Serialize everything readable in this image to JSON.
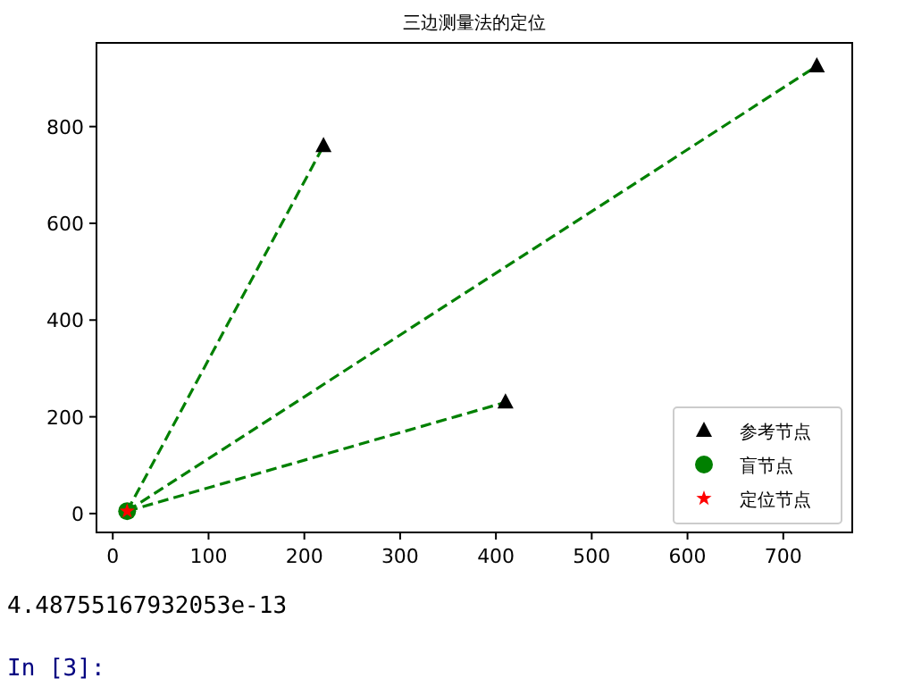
{
  "chart_data": {
    "type": "scatter",
    "title": "三边测量法的定位",
    "xlim": [
      -17,
      772
    ],
    "ylim": [
      -39,
      973
    ],
    "xticks": [
      0,
      100,
      200,
      300,
      400,
      500,
      600,
      700
    ],
    "yticks": [
      0,
      200,
      400,
      600,
      800
    ],
    "legend": "bottom right",
    "series": [
      {
        "type": "line",
        "color": "#008000",
        "line_style": "dashed",
        "marker": "none",
        "x": [
          15,
          220
        ],
        "values": [
          5,
          760
        ]
      },
      {
        "type": "line",
        "color": "#008000",
        "line_style": "dashed",
        "marker": "none",
        "x": [
          15,
          410
        ],
        "values": [
          5,
          230
        ]
      },
      {
        "type": "line",
        "color": "#008000",
        "line_style": "dashed",
        "marker": "none",
        "x": [
          15,
          735
        ],
        "values": [
          5,
          925
        ]
      },
      {
        "name": "参考节点",
        "color": "#000000",
        "marker": "triangle",
        "x": [
          220,
          410,
          735
        ],
        "values": [
          760,
          230,
          925
        ]
      },
      {
        "name": "盲节点",
        "color": "#008000",
        "marker": "circle",
        "x": [
          15
        ],
        "values": [
          5
        ]
      },
      {
        "name": "定位节点",
        "color": "#ff0000",
        "marker": "star",
        "x": [
          15
        ],
        "values": [
          5
        ]
      }
    ],
    "annotations": [
      "4.48755167932053e-13",
      "In [3]:"
    ]
  }
}
